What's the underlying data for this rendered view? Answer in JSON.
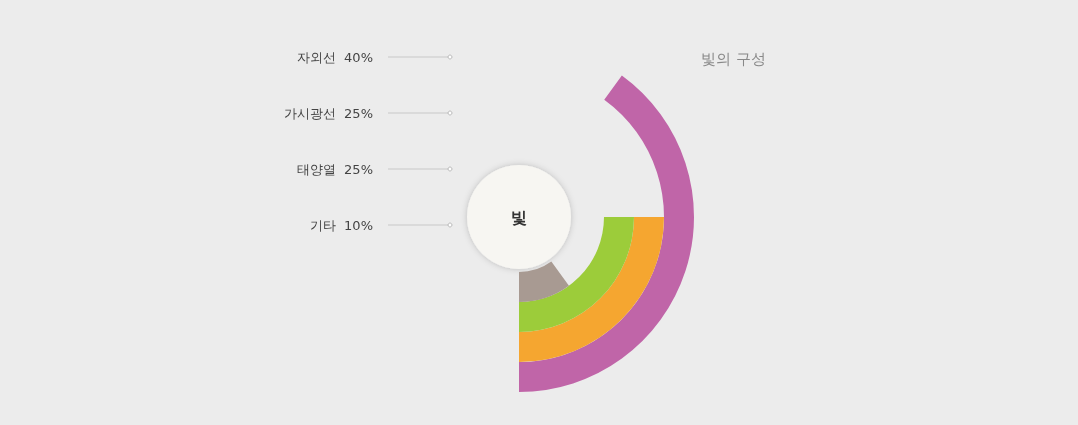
{
  "chart_data": {
    "type": "other",
    "title": "빛의 구성",
    "categories": [
      "자외선",
      "가시광선",
      "태양열",
      "기타"
    ],
    "values": [
      40,
      25,
      25,
      10
    ],
    "value_labels": [
      "40%",
      "25%",
      "25%",
      "10%"
    ],
    "colors": [
      "#c065a8",
      "#f5a630",
      "#9ccc3a",
      "#a89a92"
    ],
    "annotations": [
      "빛"
    ]
  }
}
